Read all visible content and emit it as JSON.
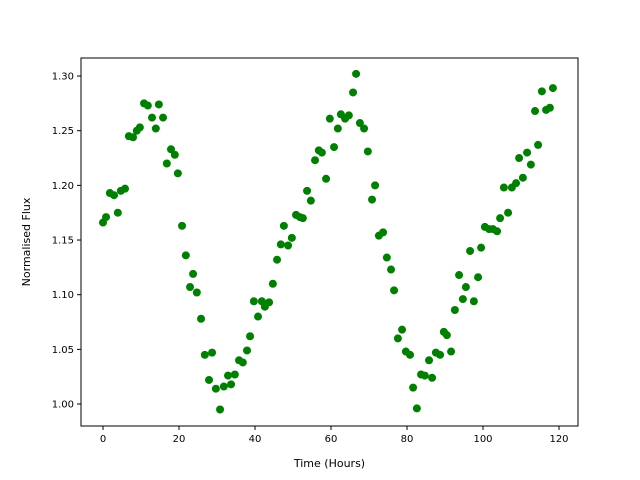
{
  "chart_data": {
    "type": "scatter",
    "xlabel": "Time (Hours)",
    "ylabel": "Normalised Flux",
    "color": "#008000",
    "x": [
      0,
      0.8,
      1.8,
      2.9,
      3.9,
      4.7,
      5.8,
      6.8,
      7.9,
      8.9,
      9.7,
      10.8,
      11.8,
      12.9,
      13.9,
      14.7,
      15.8,
      16.8,
      17.9,
      18.9,
      19.7,
      20.8,
      21.8,
      22.9,
      23.7,
      24.7,
      25.8,
      26.8,
      27.9,
      28.7,
      29.7,
      30.8,
      31.8,
      32.9,
      33.7,
      34.7,
      35.8,
      36.8,
      37.9,
      38.7,
      39.7,
      40.8,
      41.8,
      42.6,
      43.7,
      44.7,
      45.8,
      46.8,
      47.6,
      48.7,
      49.7,
      50.8,
      51.8,
      52.6,
      53.7,
      54.7,
      55.8,
      56.8,
      57.6,
      58.7,
      59.7,
      60.8,
      61.8,
      62.6,
      63.7,
      64.7,
      65.8,
      66.6,
      67.6,
      68.7,
      69.7,
      70.8,
      71.6,
      72.6,
      73.7,
      74.7,
      75.8,
      76.6,
      77.6,
      78.7,
      79.7,
      80.8,
      81.6,
      82.6,
      83.7,
      84.7,
      85.8,
      86.6,
      87.6,
      88.7,
      89.7,
      90.5,
      91.6,
      92.6,
      93.7,
      94.7,
      95.5,
      96.6,
      97.6,
      98.7,
      99.5,
      100.5,
      101.6,
      102.6,
      103.7,
      104.5,
      105.5,
      106.6,
      107.6,
      108.7,
      109.5,
      110.5,
      111.6,
      112.6,
      113.7,
      114.5,
      115.5,
      116.6,
      117.6,
      118.4
    ],
    "values": [
      1.166,
      1.171,
      1.193,
      1.191,
      1.175,
      1.195,
      1.197,
      1.245,
      1.244,
      1.25,
      1.253,
      1.275,
      1.273,
      1.262,
      1.252,
      1.274,
      1.262,
      1.22,
      1.233,
      1.228,
      1.211,
      1.163,
      1.136,
      1.107,
      1.119,
      1.102,
      1.078,
      1.045,
      1.022,
      1.047,
      1.014,
      0.995,
      1.016,
      1.026,
      1.018,
      1.027,
      1.04,
      1.038,
      1.049,
      1.062,
      1.094,
      1.08,
      1.094,
      1.089,
      1.093,
      1.11,
      1.132,
      1.146,
      1.163,
      1.145,
      1.152,
      1.173,
      1.171,
      1.17,
      1.195,
      1.186,
      1.223,
      1.232,
      1.23,
      1.206,
      1.261,
      1.235,
      1.252,
      1.265,
      1.261,
      1.264,
      1.285,
      1.302,
      1.257,
      1.252,
      1.231,
      1.187,
      1.2,
      1.154,
      1.157,
      1.134,
      1.123,
      1.104,
      1.06,
      1.068,
      1.048,
      1.045,
      1.015,
      0.996,
      1.027,
      1.026,
      1.04,
      1.024,
      1.047,
      1.045,
      1.066,
      1.063,
      1.048,
      1.086,
      1.118,
      1.096,
      1.107,
      1.14,
      1.094,
      1.116,
      1.143,
      1.162,
      1.16,
      1.16,
      1.158,
      1.17,
      1.198,
      1.175,
      1.198,
      1.202,
      1.225,
      1.207,
      1.23,
      1.219,
      1.268,
      1.237,
      1.286,
      1.269,
      1.271,
      1.289
    ],
    "xlim": [
      -5.79,
      125
    ],
    "ylim": [
      0.9799,
      1.3165
    ],
    "xticks": [
      0,
      20,
      40,
      60,
      80,
      100,
      120
    ],
    "yticks": [
      {
        "value": 1.0,
        "label": "1.00"
      },
      1.05,
      {
        "value": 1.1,
        "label": "1.10"
      },
      1.15,
      {
        "value": 1.2,
        "label": "1.20"
      },
      1.25,
      {
        "value": 1.3,
        "label": "1.30"
      }
    ]
  }
}
